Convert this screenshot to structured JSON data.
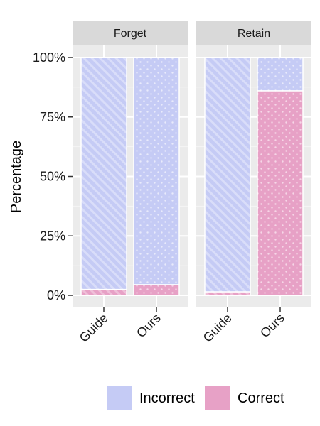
{
  "chart_data": {
    "type": "bar",
    "stacked": true,
    "ylabel": "Percentage",
    "ylim": [
      0,
      100
    ],
    "yticks": [
      "0%",
      "25%",
      "50%",
      "75%",
      "100%"
    ],
    "categories": [
      "Guide",
      "Ours"
    ],
    "facets": [
      "Forget",
      "Retain"
    ],
    "series": [
      {
        "name": "Incorrect",
        "color": "#c5cbf5",
        "pattern": "stripes/dots"
      },
      {
        "name": "Correct",
        "color": "#e7a1c6",
        "pattern": "stripes/dots"
      }
    ],
    "values": {
      "Forget": {
        "Guide": {
          "Correct": 2.5,
          "Incorrect": 97.5
        },
        "Ours": {
          "Correct": 4.5,
          "Incorrect": 95.5
        }
      },
      "Retain": {
        "Guide": {
          "Correct": 1.5,
          "Incorrect": 98.5
        },
        "Ours": {
          "Correct": 86,
          "Incorrect": 14
        }
      }
    },
    "grid": true,
    "legend_position": "bottom"
  }
}
